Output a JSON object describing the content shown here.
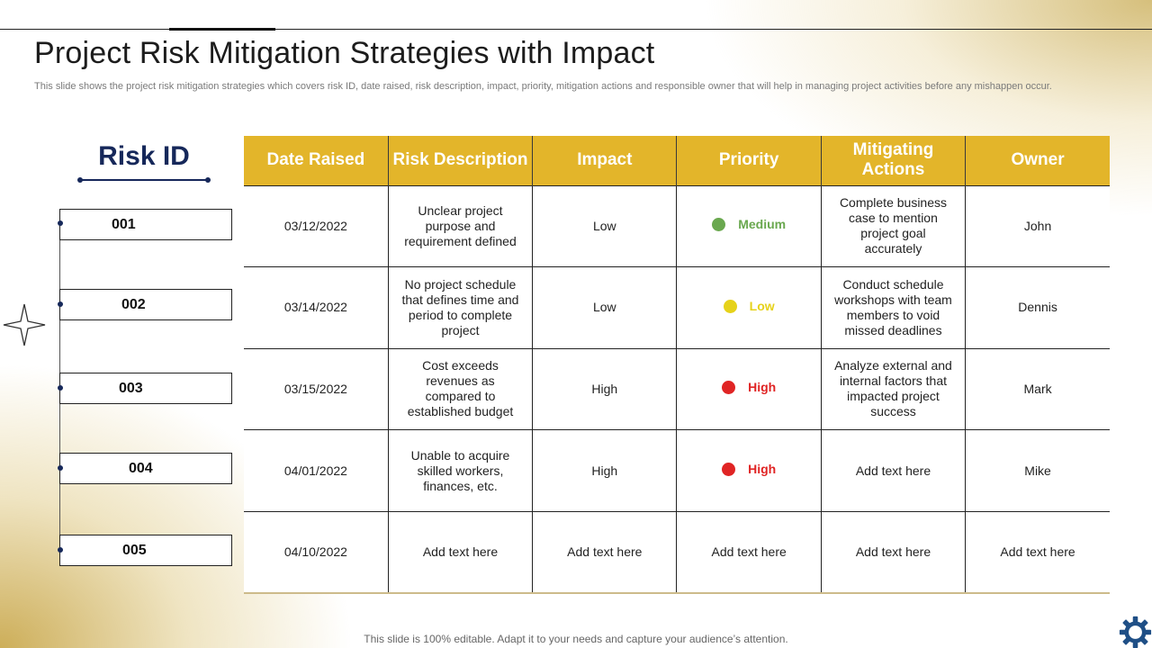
{
  "slide": {
    "title": "Project Risk Mitigation Strategies with Impact",
    "subtitle": "This slide shows the project risk mitigation strategies which covers risk ID, date raised, risk description, impact, priority, mitigation actions and responsible owner that will help in managing project activities before any mishappen occur.",
    "footer": "This slide is 100% editable. Adapt it to your needs and capture your audience’s attention."
  },
  "risk_id": {
    "heading": "Risk ID",
    "ids": [
      "001",
      "002",
      "003",
      "004",
      "005"
    ]
  },
  "table": {
    "headers": [
      "Date Raised",
      "Risk Description",
      "Impact",
      "Priority",
      "Mitigating Actions",
      "Owner"
    ],
    "rows": [
      {
        "date": "03/12/2022",
        "description": "Unclear project purpose and requirement defined",
        "impact": "Low",
        "priority": "Medium",
        "priority_color": "#6aa84f",
        "action": "Complete business case to mention project goal accurately",
        "owner": "John"
      },
      {
        "date": "03/14/2022",
        "description": "No project schedule that defines time and period to complete project",
        "impact": "Low",
        "priority": "Low",
        "priority_color": "#e6d21a",
        "action": "Conduct schedule workshops with team members to void missed deadlines",
        "owner": "Dennis"
      },
      {
        "date": "03/15/2022",
        "description": "Cost exceeds revenues as compared to established budget",
        "impact": "High",
        "priority": "High",
        "priority_color": "#e02424",
        "action": "Analyze external and internal factors that impacted project success",
        "owner": "Mark"
      },
      {
        "date": "04/01/2022",
        "description": "Unable to acquire skilled workers, finances, etc.",
        "impact": "High",
        "priority": "High",
        "priority_color": "#e02424",
        "action": "Add text here",
        "owner": "Mike"
      },
      {
        "date": "04/10/2022",
        "description": "Add text here",
        "impact": "Add text here",
        "priority": "Add text here",
        "action": "Add text here",
        "owner": "Add text here"
      }
    ]
  },
  "icons": {
    "compass": "four-point-star-icon",
    "settings": "gear-icon"
  }
}
